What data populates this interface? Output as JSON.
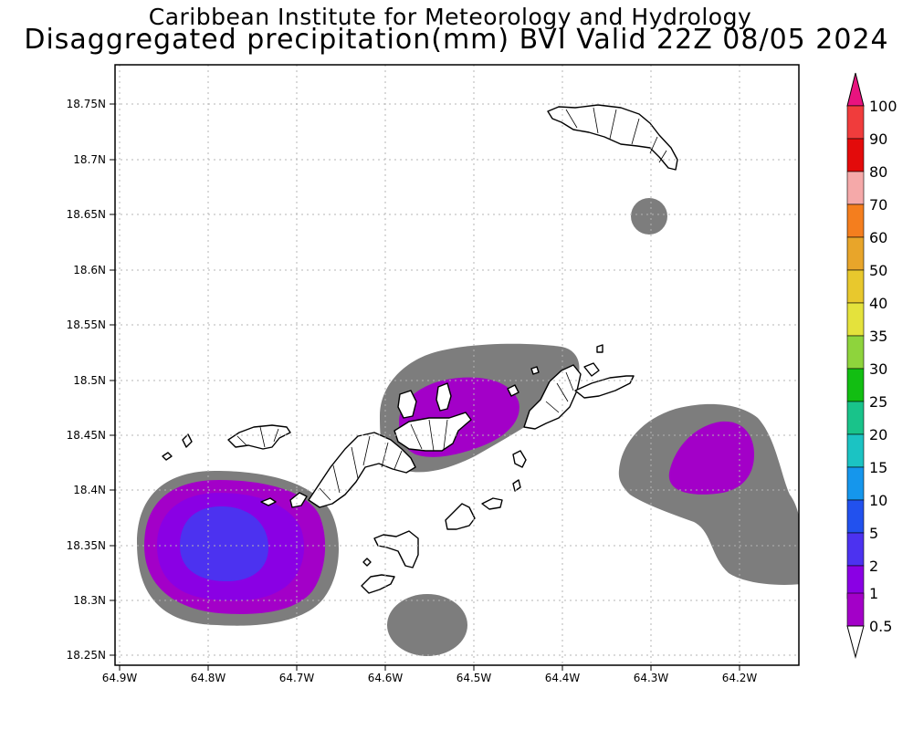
{
  "title": {
    "line1": "Caribbean Institute for Meteorology and Hydrology",
    "line2": "Disaggregated precipitation(mm) BVI Valid 22Z 08/05 2024"
  },
  "map": {
    "lat_labels": [
      "18.75N",
      "18.7N",
      "18.65N",
      "18.6N",
      "18.55N",
      "18.5N",
      "18.45N",
      "18.4N",
      "18.35N",
      "18.3N",
      "18.25N"
    ],
    "lon_labels": [
      "64.9W",
      "64.8W",
      "64.7W",
      "64.6W",
      "64.5W",
      "64.4W",
      "64.3W",
      "64.2W"
    ],
    "lat_range": [
      18.24,
      18.79
    ],
    "lon_range": [
      -64.905,
      -64.145
    ]
  },
  "colorbar": {
    "labels": [
      "100",
      "90",
      "80",
      "70",
      "60",
      "50",
      "40",
      "35",
      "30",
      "25",
      "20",
      "15",
      "10",
      "5",
      "2",
      "1",
      "0.5"
    ],
    "colors": [
      "#e8137f",
      "#f03c3c",
      "#e30b0b",
      "#f5a9a9",
      "#f47e1e",
      "#e8a52a",
      "#e8c82d",
      "#e4e23c",
      "#8ed43c",
      "#12be12",
      "#19c38a",
      "#1bc3c3",
      "#1596ec",
      "#2251ee",
      "#4c32f0",
      "#8a00e4",
      "#a300c8",
      "#7d7d7d",
      "#ffffff"
    ],
    "level_colors": {
      "0.5": "#7d7d7d",
      "1": "#a300c8",
      "2": "#8a00e4",
      "5": "#4c32f0"
    }
  }
}
